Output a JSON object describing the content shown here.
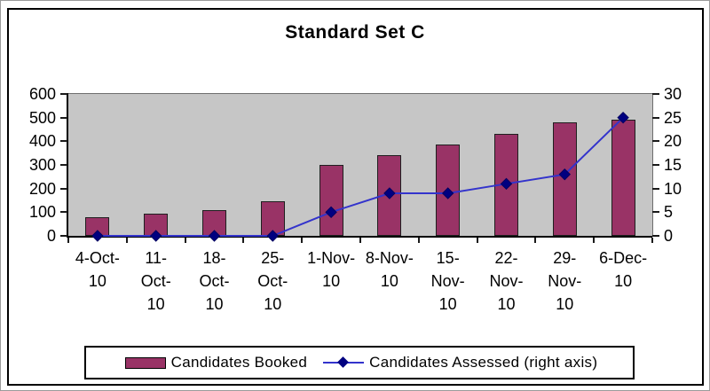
{
  "chart_data": {
    "type": "combo-bar-line",
    "title": "Standard Set C",
    "categories": [
      "4-Oct-10",
      "11-Oct-10",
      "18-Oct-10",
      "25-Oct-10",
      "1-Nov-10",
      "8-Nov-10",
      "15-Nov-10",
      "22-Nov-10",
      "29-Nov-10",
      "6-Dec-10"
    ],
    "category_label_lines": [
      [
        "4-Oct-",
        "10"
      ],
      [
        "11-",
        "Oct-",
        "10"
      ],
      [
        "18-",
        "Oct-",
        "10"
      ],
      [
        "25-",
        "Oct-",
        "10"
      ],
      [
        "1-Nov-",
        "10"
      ],
      [
        "8-Nov-",
        "10"
      ],
      [
        "15-",
        "Nov-",
        "10"
      ],
      [
        "22-",
        "Nov-",
        "10"
      ],
      [
        "29-",
        "Nov-",
        "10"
      ],
      [
        "6-Dec-",
        "10"
      ]
    ],
    "series": [
      {
        "name": "Candidates Booked",
        "type": "bar",
        "axis": "left",
        "color": "#993366",
        "border_color": "#1f1f1f",
        "values": [
          80,
          95,
          110,
          145,
          300,
          340,
          385,
          430,
          480,
          490
        ]
      },
      {
        "name": "Candidates Assessed (right axis)",
        "type": "line",
        "axis": "right",
        "color": "#3333cc",
        "marker_color": "#000080",
        "values": [
          0,
          0,
          0,
          0,
          5,
          9,
          9,
          11,
          13,
          25
        ]
      }
    ],
    "left_axis": {
      "min": 0,
      "max": 600,
      "step": 100,
      "tick_labels": [
        "0",
        "100",
        "200",
        "300",
        "400",
        "500",
        "600"
      ]
    },
    "right_axis": {
      "min": 0,
      "max": 30,
      "step": 5,
      "tick_labels": [
        "0",
        "5",
        "10",
        "15",
        "20",
        "25",
        "30"
      ]
    },
    "legend_position": "bottom",
    "plot_background": "#c6c6c6",
    "grid": false
  }
}
